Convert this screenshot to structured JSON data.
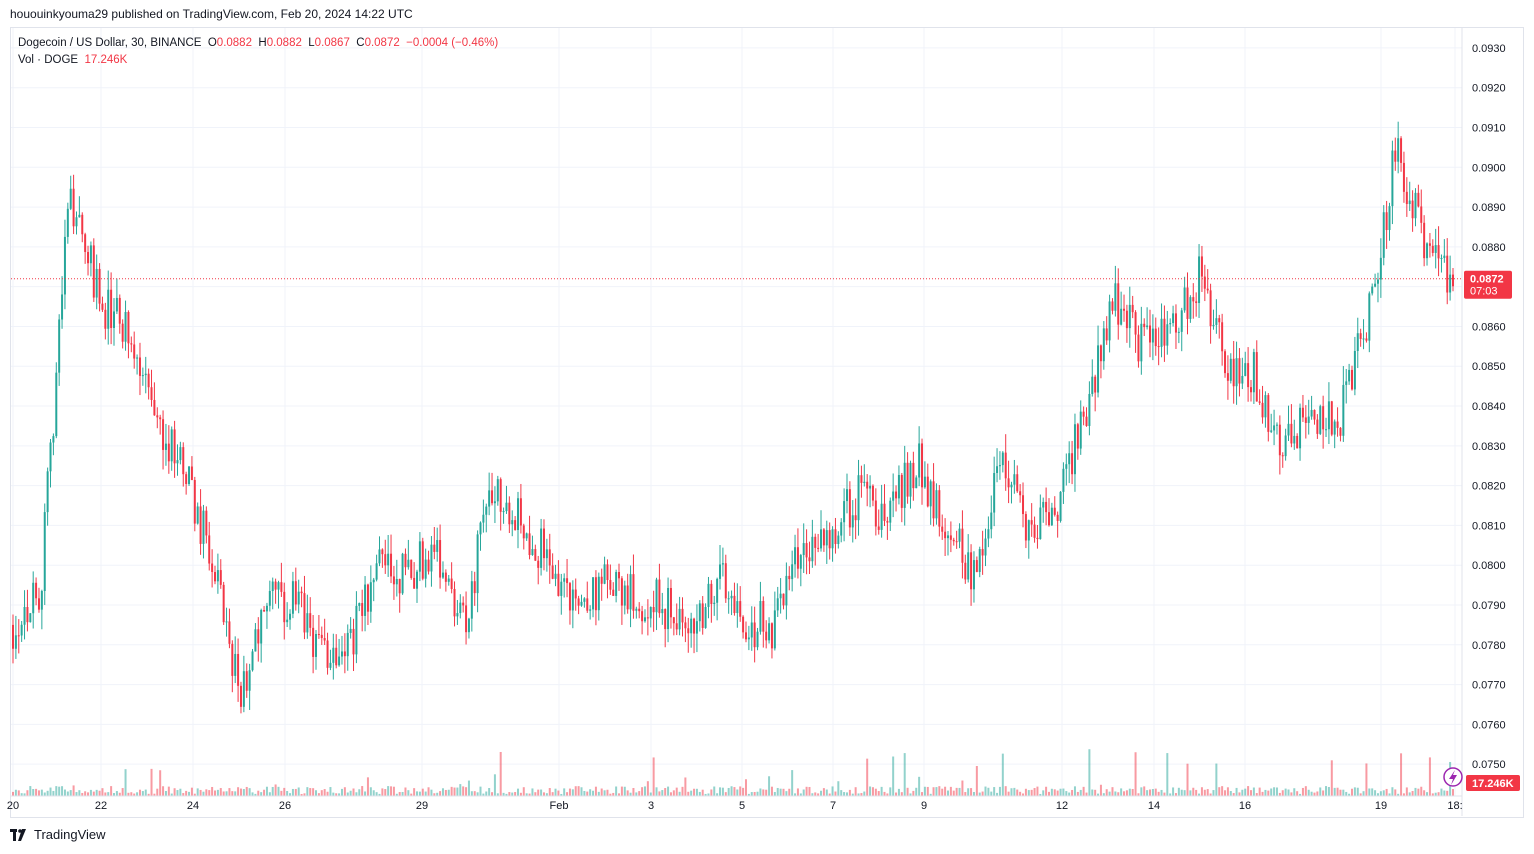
{
  "header": {
    "published_line": "hououinkyouma29 published on TradingView.com, Feb 20, 2024 14:22 UTC"
  },
  "legend": {
    "symbol": "Dogecoin / US Dollar, 30, BINANCE",
    "o_label": "O",
    "o_value": "0.0882",
    "h_label": "H",
    "h_value": "0.0882",
    "l_label": "L",
    "l_value": "0.0867",
    "c_label": "C",
    "c_value": "0.0872",
    "change": "−0.0004 (−0.46%)",
    "vol_label": "Vol · DOGE",
    "vol_value": "17.246K"
  },
  "price_tag": {
    "price": "0.0872",
    "countdown": "07:03"
  },
  "volume_tag": "17.246K",
  "footer": {
    "brand": "TradingView"
  },
  "colors": {
    "up": "#26a69a",
    "down": "#f23645",
    "grid": "#f0f3fa",
    "tag": "#f23645"
  },
  "chart_data": {
    "type": "candlestick",
    "symbol": "DOGEUSD",
    "exchange": "BINANCE",
    "interval": "30",
    "ylim": [
      0.0742,
      0.0935
    ],
    "y_ticks": [
      "0.0930",
      "0.0920",
      "0.0910",
      "0.0900",
      "0.0890",
      "0.0880",
      "0.0870",
      "0.0860",
      "0.0850",
      "0.0840",
      "0.0830",
      "0.0820",
      "0.0810",
      "0.0800",
      "0.0790",
      "0.0780",
      "0.0770",
      "0.0760",
      "0.0750"
    ],
    "x_tick_labels": [
      "20",
      "22",
      "24",
      "26",
      "29",
      "Feb",
      "3",
      "5",
      "7",
      "9",
      "12",
      "14",
      "16",
      "19",
      "18:"
    ],
    "last_price": 0.0872,
    "price_path": [
      {
        "date": "Jan 20",
        "close": 0.0785
      },
      {
        "date": "Jan 20 18:00",
        "close": 0.0795
      },
      {
        "date": "Jan 21",
        "close": 0.0895
      },
      {
        "date": "Jan 21 12:00",
        "close": 0.0868
      },
      {
        "date": "Jan 22",
        "close": 0.0858
      },
      {
        "date": "Jan 22 12:00",
        "close": 0.0838
      },
      {
        "date": "Jan 23",
        "close": 0.0825
      },
      {
        "date": "Jan 23 12:00",
        "close": 0.0802
      },
      {
        "date": "Jan 24",
        "close": 0.0768
      },
      {
        "date": "Jan 24 12:00",
        "close": 0.079
      },
      {
        "date": "Jan 25",
        "close": 0.079
      },
      {
        "date": "Jan 25 12:00",
        "close": 0.0778
      },
      {
        "date": "Jan 26",
        "close": 0.0782
      },
      {
        "date": "Jan 26 12:00",
        "close": 0.08
      },
      {
        "date": "Jan 27",
        "close": 0.0798
      },
      {
        "date": "Jan 28",
        "close": 0.0805
      },
      {
        "date": "Jan 28 12:00",
        "close": 0.0785
      },
      {
        "date": "Jan 29",
        "close": 0.0822
      },
      {
        "date": "Jan 30",
        "close": 0.0812
      },
      {
        "date": "Jan 31",
        "close": 0.08
      },
      {
        "date": "Feb 1",
        "close": 0.079
      },
      {
        "date": "Feb 2",
        "close": 0.0795
      },
      {
        "date": "Feb 3",
        "close": 0.0792
      },
      {
        "date": "Feb 4",
        "close": 0.079
      },
      {
        "date": "Feb 5",
        "close": 0.0782
      },
      {
        "date": "Feb 5 12:00",
        "close": 0.0798
      },
      {
        "date": "Feb 6",
        "close": 0.0785
      },
      {
        "date": "Feb 7",
        "close": 0.0785
      },
      {
        "date": "Feb 8",
        "close": 0.0805
      },
      {
        "date": "Feb 9",
        "close": 0.0808
      },
      {
        "date": "Feb 10",
        "close": 0.0818
      },
      {
        "date": "Feb 11",
        "close": 0.0812
      },
      {
        "date": "Feb 11 12:00",
        "close": 0.0826
      },
      {
        "date": "Feb 12",
        "close": 0.0812
      },
      {
        "date": "Feb 12 12:00",
        "close": 0.0798
      },
      {
        "date": "Feb 13",
        "close": 0.0825
      },
      {
        "date": "Feb 13 12:00",
        "close": 0.0808
      },
      {
        "date": "Feb 14",
        "close": 0.0815
      },
      {
        "date": "Feb 14 12:00",
        "close": 0.084
      },
      {
        "date": "Feb 15",
        "close": 0.0868
      },
      {
        "date": "Feb 15 12:00",
        "close": 0.0855
      },
      {
        "date": "Feb 16",
        "close": 0.086
      },
      {
        "date": "Feb 16 12:00",
        "close": 0.0872
      },
      {
        "date": "Feb 17",
        "close": 0.085
      },
      {
        "date": "Feb 17 12:00",
        "close": 0.0848
      },
      {
        "date": "Feb 18",
        "close": 0.0828
      },
      {
        "date": "Feb 18 12:00",
        "close": 0.0838
      },
      {
        "date": "Feb 19",
        "close": 0.0838
      },
      {
        "date": "Feb 19 12:00",
        "close": 0.0862
      },
      {
        "date": "Feb 20",
        "close": 0.0905
      },
      {
        "date": "Feb 20 06:00",
        "close": 0.0882
      },
      {
        "date": "Feb 20 14:00",
        "close": 0.0872
      }
    ]
  }
}
